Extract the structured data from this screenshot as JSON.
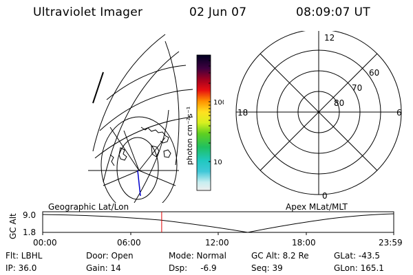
{
  "header": {
    "instrument": "Ultraviolet Imager",
    "date": "02 Jun 07",
    "time": "08:09:07 UT"
  },
  "colorbar": {
    "unit_label": "photon cm⁻²s⁻¹",
    "tick_100": "100",
    "tick_10": "10"
  },
  "polar_plot": {
    "label_top": "12",
    "label_left": "18",
    "label_right": "6",
    "label_bottom": "0",
    "lat_60": "60",
    "lat_70": "70",
    "lat_80": "80"
  },
  "timeline": {
    "left_label": "Geographic Lat/Lon",
    "right_label": "Apex MLat/MLT",
    "axis_title": "GC Alt",
    "y_max": "9.0",
    "y_min": "1.8",
    "x_ticks": [
      "00:00",
      "06:00",
      "12:00",
      "18:00",
      "23:59"
    ],
    "current_time_fraction": 0.339
  },
  "status": {
    "flt": "Flt: LBHL",
    "ip": "IP: 36.0",
    "door": "Door: Open",
    "gain": "Gain: 14",
    "mode": "Mode: Normal",
    "dsp": "Dsp:     -6.9",
    "gc_alt": "GC Alt: 8.2 Re",
    "seq": "Seq: 39",
    "glat": "GLat: -43.5",
    "glon": "GLon: 165.1"
  },
  "colors": {
    "marker": "#e00000",
    "coastline": "#000000",
    "meridian": "#0000cc"
  }
}
